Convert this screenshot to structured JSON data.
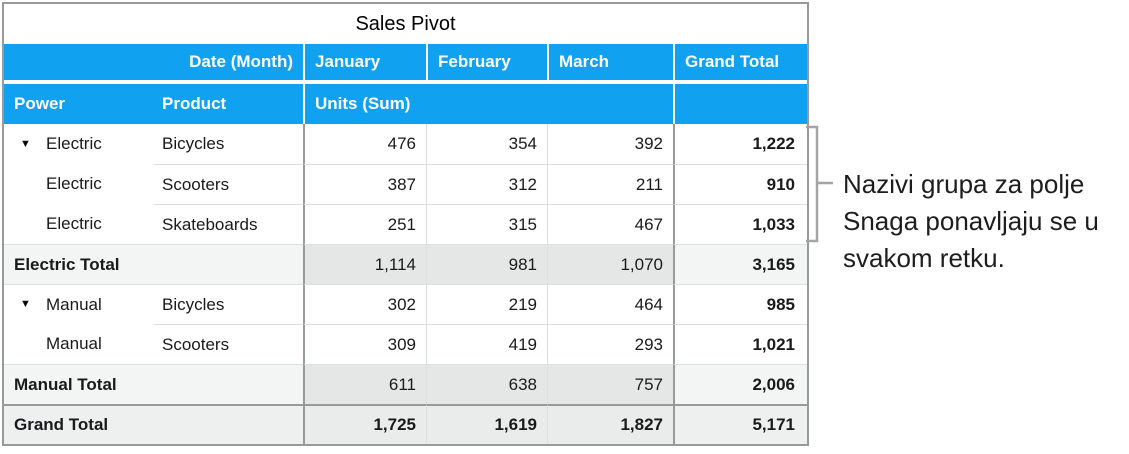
{
  "title": "Sales Pivot",
  "header": {
    "date_field": "Date (Month)",
    "columns": [
      "January",
      "February",
      "March",
      "Grand Total"
    ],
    "power": "Power",
    "product": "Product",
    "units": "Units (Sum)"
  },
  "rows": [
    {
      "type": "data",
      "disclosure": true,
      "power": "Electric",
      "product": "Bicycles",
      "values": [
        "476",
        "354",
        "392"
      ],
      "total": "1,222"
    },
    {
      "type": "data",
      "disclosure": false,
      "power": "Electric",
      "product": "Scooters",
      "values": [
        "387",
        "312",
        "211"
      ],
      "total": "910"
    },
    {
      "type": "data",
      "disclosure": false,
      "power": "Electric",
      "product": "Skateboards",
      "values": [
        "251",
        "315",
        "467"
      ],
      "total": "1,033"
    },
    {
      "type": "subtotal",
      "label": "Electric Total",
      "values": [
        "1,114",
        "981",
        "1,070"
      ],
      "total": "3,165"
    },
    {
      "type": "data",
      "disclosure": true,
      "power": "Manual",
      "product": "Bicycles",
      "values": [
        "302",
        "219",
        "464"
      ],
      "total": "985"
    },
    {
      "type": "data",
      "disclosure": false,
      "power": "Manual",
      "product": "Scooters",
      "values": [
        "309",
        "419",
        "293"
      ],
      "total": "1,021"
    },
    {
      "type": "subtotal",
      "label": "Manual Total",
      "values": [
        "611",
        "638",
        "757"
      ],
      "total": "2,006"
    },
    {
      "type": "grandtotal",
      "label": "Grand Total",
      "values": [
        "1,725",
        "1,619",
        "1,827"
      ],
      "total": "5,171"
    }
  ],
  "annotation": {
    "lines": [
      "Nazivi grupa za polje",
      "Snaga ponavljaju se u",
      "svakom retku."
    ]
  },
  "icons": {
    "disclosure": "▼"
  },
  "colors": {
    "header_blue": "#11a1f1",
    "dark_border": "#97999a",
    "light_border": "#dedfdf",
    "subtotal_label_bg": "#f3f4f4",
    "subtotal_month_bg": "#e5e6e6",
    "grandtotal_bg": "#eeefef",
    "bracket_gray": "#a3a5a5",
    "text": "#1a1a1c"
  }
}
